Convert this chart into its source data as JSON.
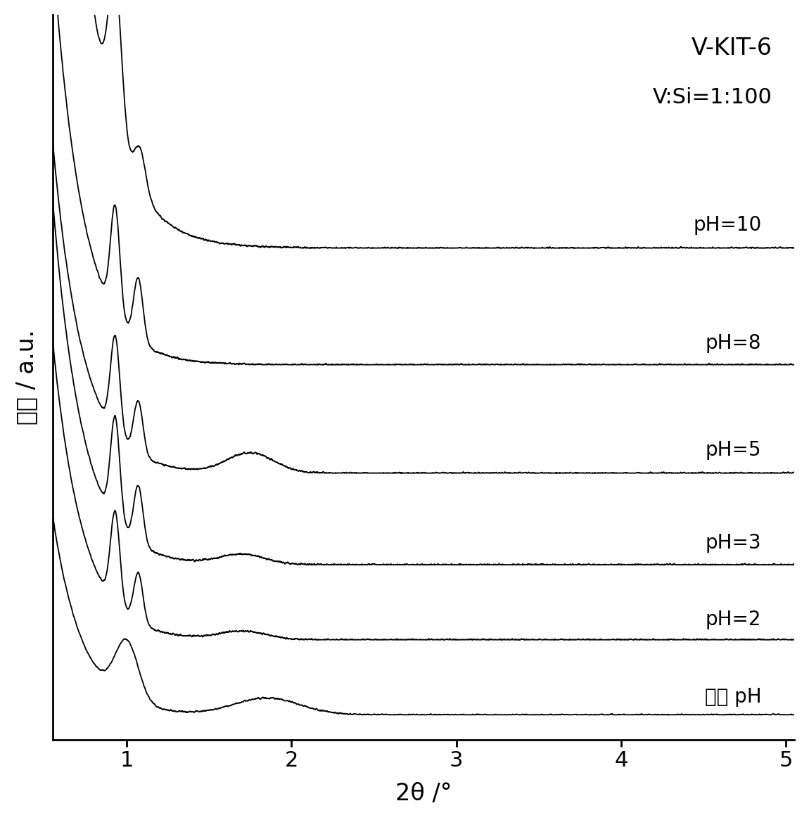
{
  "title_line1": "V-KIT-6",
  "title_line2": "V:Si=1:100",
  "xlabel": "2θ /°",
  "ylabel": "强度 / a.u.",
  "xlim": [
    0.55,
    5.05
  ],
  "xticks": [
    1,
    2,
    3,
    4,
    5
  ],
  "labels": [
    "pH=10",
    "pH=8",
    "pH=5",
    "pH=3",
    "pH=2",
    "不调 pH"
  ],
  "offsets": [
    2.8,
    2.1,
    1.45,
    0.9,
    0.45,
    0.0
  ],
  "line_color": "#000000",
  "background_color": "#ffffff",
  "title_fontsize": 24,
  "axis_label_fontsize": 24,
  "tick_fontsize": 22,
  "label_fontsize": 20
}
